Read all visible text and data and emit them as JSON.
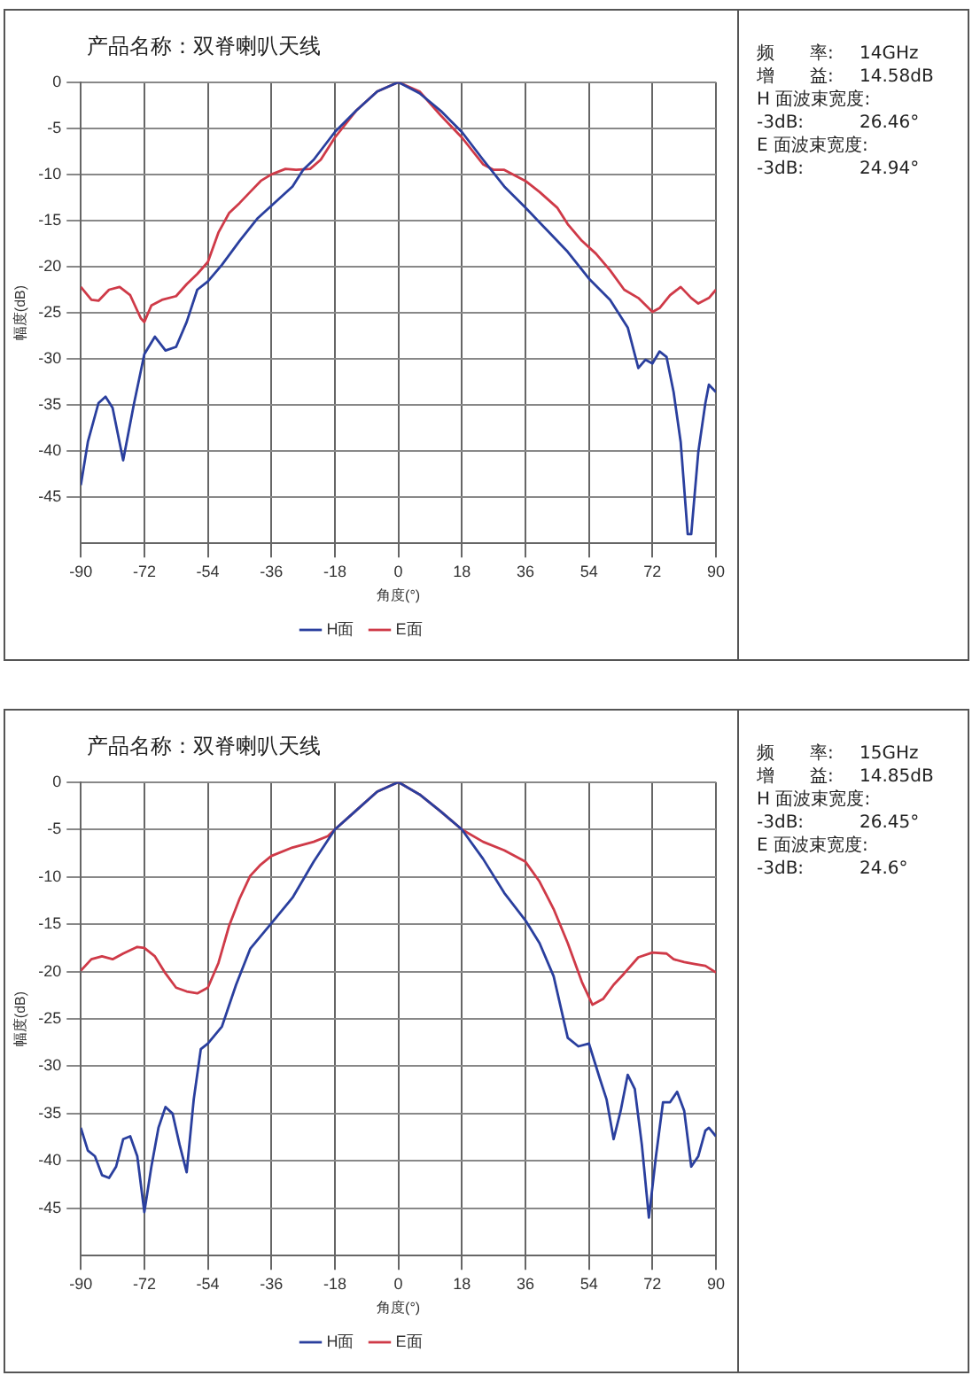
{
  "chart_data": [
    {
      "type": "line",
      "title": "产品名称：双脊喇叭天线",
      "xlabel": "角度(°)",
      "ylabel": "幅度(dB)",
      "xlim": [
        -90,
        90
      ],
      "xticks": [
        -90,
        -72,
        -54,
        -36,
        -18,
        0,
        18,
        36,
        54,
        72,
        90
      ],
      "ylim": [
        -50,
        0
      ],
      "yticks": [
        0,
        -5,
        -10,
        -15,
        -20,
        -25,
        -30,
        -35,
        -40,
        -45
      ],
      "grid": true,
      "legend": "bottom",
      "marker": "none",
      "line_style": "solid",
      "annotations": [
        "频　　率:\t14GHz",
        "增　　益:\t14.58dB",
        "H 面波束宽度:",
        "-3dB:\t26.46°",
        "E 面波束宽度:",
        "-3dB:\t24.94°"
      ],
      "series": [
        {
          "name": "H面",
          "color": "#2a3f9e",
          "x": [
            -90,
            -88,
            -85,
            -83,
            -81,
            -78,
            -75,
            -72,
            -69,
            -66,
            -63,
            -60,
            -57,
            -54,
            -50,
            -45,
            -40,
            -36,
            -30,
            -27,
            -24,
            -18,
            -12,
            -6,
            0,
            6,
            12,
            18,
            24,
            30,
            36,
            42,
            48,
            54,
            60,
            65,
            68,
            70,
            72,
            74,
            76,
            78,
            80,
            82,
            83,
            85,
            87,
            88,
            90
          ],
          "values": [
            -43.7,
            -39,
            -34.8,
            -34.1,
            -35.3,
            -41,
            -35,
            -29.5,
            -27.6,
            -29.1,
            -28.7,
            -26,
            -22.5,
            -21.6,
            -19.8,
            -17.2,
            -14.8,
            -13.4,
            -11.3,
            -9.5,
            -8.4,
            -5.4,
            -3.1,
            -1,
            0,
            -1.2,
            -3.1,
            -5.4,
            -8.4,
            -11.3,
            -13.6,
            -16,
            -18.4,
            -21.3,
            -23.6,
            -26.6,
            -31,
            -30.1,
            -30.5,
            -29.2,
            -29.8,
            -33.6,
            -39,
            -49,
            -49,
            -40.1,
            -34.8,
            -32.8,
            -33.6
          ]
        },
        {
          "name": "E面",
          "color": "#cf3a48",
          "x": [
            -90,
            -87,
            -85,
            -82,
            -79,
            -76,
            -73,
            -72,
            -70,
            -67,
            -63,
            -60,
            -57,
            -54,
            -51,
            -48,
            -45,
            -42,
            -39,
            -36,
            -32,
            -29,
            -25,
            -22,
            -18,
            -12,
            -6,
            0,
            6,
            12,
            18,
            24,
            27,
            30,
            33,
            36,
            40,
            45,
            48,
            52,
            56,
            60,
            64,
            68,
            72,
            74,
            77,
            80,
            83,
            85,
            88,
            90
          ],
          "values": [
            -22.2,
            -23.6,
            -23.7,
            -22.5,
            -22.2,
            -23.1,
            -25.6,
            -26,
            -24.2,
            -23.6,
            -23.2,
            -21.9,
            -20.8,
            -19.5,
            -16.3,
            -14.2,
            -13.1,
            -11.9,
            -10.7,
            -10,
            -9.4,
            -9.5,
            -9.4,
            -8.4,
            -6,
            -3.1,
            -1,
            0,
            -1,
            -3.6,
            -6,
            -8.9,
            -9.5,
            -9.5,
            -10.1,
            -10.7,
            -11.9,
            -13.6,
            -15.4,
            -17.2,
            -18.6,
            -20.4,
            -22.5,
            -23.4,
            -24.9,
            -24.5,
            -23.1,
            -22.2,
            -23.4,
            -24,
            -23.4,
            -22.5
          ]
        }
      ]
    },
    {
      "type": "line",
      "title": "产品名称：双脊喇叭天线",
      "xlabel": "角度(°)",
      "ylabel": "幅度(dB)",
      "xlim": [
        -90,
        90
      ],
      "xticks": [
        -90,
        -72,
        -54,
        -36,
        -18,
        0,
        18,
        36,
        54,
        72,
        90
      ],
      "ylim": [
        -50,
        0
      ],
      "yticks": [
        0,
        -5,
        -10,
        -15,
        -20,
        -25,
        -30,
        -35,
        -40,
        -45
      ],
      "grid": true,
      "legend": "bottom",
      "marker": "none",
      "line_style": "solid",
      "annotations": [
        "频　　率:\t15GHz",
        "增　　益:\t14.85dB",
        "H 面波束宽度:",
        "-3dB:\t26.45°",
        "E 面波束宽度:",
        "-3dB:\t24.6°"
      ],
      "series": [
        {
          "name": "H面",
          "color": "#2a3f9e",
          "x": [
            -90,
            -88,
            -86,
            -84,
            -82,
            -80,
            -78,
            -76,
            -74,
            -72,
            -70,
            -68,
            -66,
            -64,
            -62,
            -60,
            -58,
            -56,
            -54,
            -50,
            -46,
            -42,
            -36,
            -30,
            -24,
            -18,
            -12,
            -6,
            0,
            6,
            12,
            18,
            24,
            30,
            36,
            40,
            44,
            48,
            51,
            54,
            57,
            59,
            61,
            63,
            65,
            67,
            69,
            71,
            73,
            75,
            77,
            79,
            81,
            83,
            85,
            87,
            88,
            90
          ],
          "values": [
            -36.5,
            -38.9,
            -39.5,
            -41.5,
            -41.8,
            -40.6,
            -37.7,
            -37.4,
            -39.5,
            -45.4,
            -40.6,
            -36.5,
            -34.3,
            -35,
            -38.3,
            -41.2,
            -33.5,
            -28.2,
            -27.6,
            -25.8,
            -21.4,
            -17.6,
            -14.9,
            -12.2,
            -8.4,
            -5,
            -3,
            -1,
            0,
            -1.3,
            -3.1,
            -5,
            -8.1,
            -11.7,
            -14.6,
            -17,
            -20.5,
            -27,
            -27.9,
            -27.6,
            -31.2,
            -33.5,
            -37.7,
            -34.7,
            -30.9,
            -32.4,
            -38.3,
            -46,
            -39.5,
            -33.8,
            -33.8,
            -32.7,
            -34.7,
            -40.6,
            -39.5,
            -36.8,
            -36.5,
            -37.4
          ]
        },
        {
          "name": "E面",
          "color": "#cf3a48",
          "x": [
            -90,
            -87,
            -84,
            -81,
            -78,
            -74,
            -72,
            -69,
            -66,
            -63,
            -60,
            -57,
            -54,
            -51,
            -48,
            -45,
            -42,
            -39,
            -36,
            -30,
            -24,
            -20,
            -18,
            -12,
            -6,
            0,
            6,
            12,
            18,
            24,
            30,
            36,
            40,
            44,
            48,
            52,
            55,
            58,
            61,
            64,
            68,
            72,
            76,
            78,
            81,
            84,
            87,
            90
          ],
          "values": [
            -19.9,
            -18.7,
            -18.4,
            -18.7,
            -18.1,
            -17.4,
            -17.5,
            -18.4,
            -20.2,
            -21.7,
            -22.1,
            -22.3,
            -21.7,
            -19.1,
            -15.2,
            -12.3,
            -9.9,
            -8.7,
            -7.8,
            -6.9,
            -6.3,
            -5.7,
            -5,
            -3,
            -1,
            0,
            -1.3,
            -3.1,
            -5,
            -6.3,
            -7.2,
            -8.4,
            -10.5,
            -13.4,
            -17,
            -21.1,
            -23.5,
            -22.9,
            -21.4,
            -20.2,
            -18.5,
            -18,
            -18.1,
            -18.7,
            -19,
            -19.2,
            -19.4,
            -20.1
          ]
        }
      ]
    }
  ]
}
